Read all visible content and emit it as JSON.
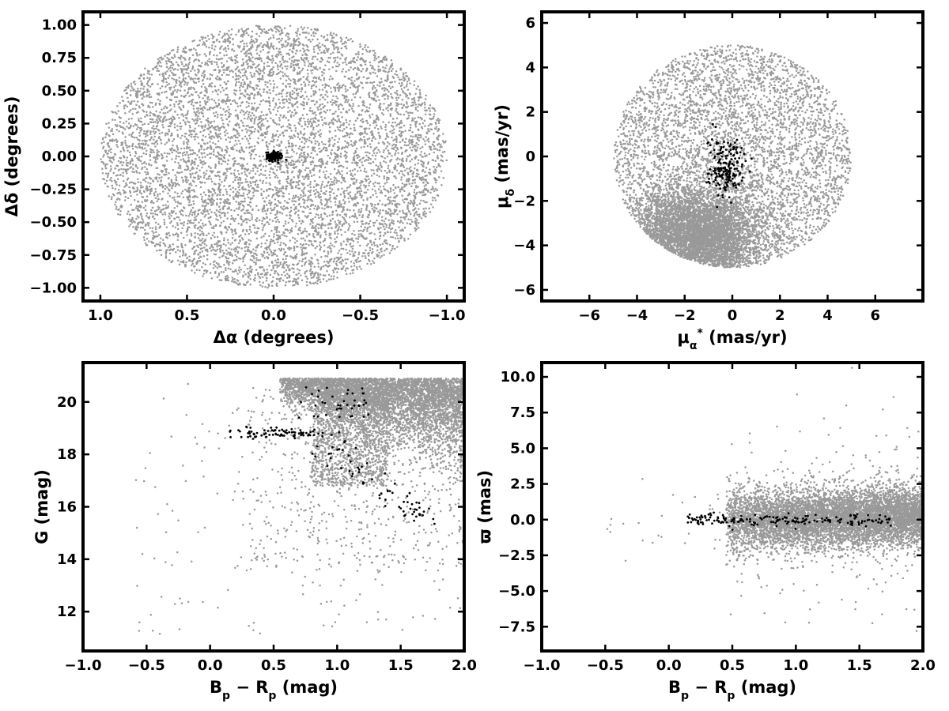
{
  "chart_data": [
    {
      "type": "scatter",
      "xlabel": "Δα (degrees)",
      "ylabel": "Δδ (degrees)",
      "xlim": [
        1.1,
        -1.1
      ],
      "ylim": [
        -1.1,
        1.1
      ],
      "xticks": [
        1.0,
        0.5,
        0.0,
        -0.5,
        -1.0
      ],
      "xtick_labels": [
        "1.0",
        "0.5",
        "0.0",
        "−0.5",
        "−1.0"
      ],
      "yticks": [
        -1.0,
        -0.75,
        -0.5,
        -0.25,
        0.0,
        0.25,
        0.5,
        0.75,
        1.0
      ],
      "ytick_labels": [
        "−1.00",
        "−0.75",
        "−0.50",
        "−0.25",
        "0.00",
        "0.25",
        "0.50",
        "0.75",
        "1.00"
      ],
      "series": [
        {
          "color": "#999999",
          "distribution": "uniform disk",
          "center": [
            0.0,
            0.0
          ],
          "radius": 1.0,
          "count": 7000
        },
        {
          "color": "#000000",
          "distribution": "compact cluster",
          "center": [
            0.0,
            0.0
          ],
          "spread": 0.02,
          "count": 160
        }
      ]
    },
    {
      "type": "scatter",
      "xlabel": "μ_α* (mas/yr)",
      "ylabel": "μ_δ (mas/yr)",
      "xlim": [
        -8,
        8
      ],
      "ylim": [
        -6.5,
        6.5
      ],
      "xticks": [
        -6,
        -4,
        -2,
        0,
        2,
        4,
        6
      ],
      "xtick_labels": [
        "−6",
        "−4",
        "−2",
        "0",
        "2",
        "4",
        "6"
      ],
      "yticks": [
        -6,
        -4,
        -2,
        0,
        2,
        4,
        6
      ],
      "ytick_labels": [
        "−6",
        "−4",
        "−2",
        "0",
        "2",
        "4",
        "6"
      ],
      "series": [
        {
          "color": "#999999",
          "distribution": "disk, denser toward lower-left",
          "center": [
            0.0,
            0.0
          ],
          "radius": 5.0,
          "dense_center": [
            -1.5,
            -3.5
          ],
          "count": 9000
        },
        {
          "color": "#000000",
          "distribution": "cluster",
          "center": [
            -0.3,
            -0.5
          ],
          "spread": [
            0.4,
            0.6
          ],
          "count": 180
        }
      ]
    },
    {
      "type": "scatter",
      "xlabel": "B_p − R_p (mag)",
      "ylabel": "G (mag)",
      "xlim": [
        -1.0,
        2.0
      ],
      "ylim": [
        10.5,
        21.5
      ],
      "xticks": [
        -1.0,
        -0.5,
        0.0,
        0.5,
        1.0,
        1.5,
        2.0
      ],
      "xtick_labels": [
        "−1.0",
        "−0.5",
        "0.0",
        "0.5",
        "1.0",
        "1.5",
        "2.0"
      ],
      "yticks": [
        12,
        14,
        16,
        18,
        20
      ],
      "ytick_labels": [
        "12",
        "14",
        "16",
        "18",
        "20"
      ],
      "series": [
        {
          "color": "#999999",
          "distribution": "field CMD",
          "count": 7000
        },
        {
          "color": "#000000",
          "distribution": "cluster CMD: horizontal branch at G≈18.8 (color 0.15–0.9), red giant branch from (0.85,18.5) to (1.75,15.3), subgiants near G≈19.5–20.5",
          "count": 190
        }
      ]
    },
    {
      "type": "scatter",
      "xlabel": "B_p − R_p (mag)",
      "ylabel": "ϖ (mas)",
      "xlim": [
        -1.0,
        2.0
      ],
      "ylim": [
        -9.2,
        11.0
      ],
      "xticks": [
        -1.0,
        -0.5,
        0.0,
        0.5,
        1.0,
        1.5,
        2.0
      ],
      "xtick_labels": [
        "−1.0",
        "−0.5",
        "0.0",
        "0.5",
        "1.0",
        "1.5",
        "2.0"
      ],
      "yticks": [
        -7.5,
        -5.0,
        -2.5,
        0.0,
        2.5,
        5.0,
        7.5,
        10.0
      ],
      "ytick_labels": [
        "−7.5",
        "−5.0",
        "−2.5",
        "0.0",
        "2.5",
        "5.0",
        "7.5",
        "10.0"
      ],
      "series": [
        {
          "color": "#999999",
          "distribution": "band around ϖ=0, spread grows with color",
          "count": 7000
        },
        {
          "color": "#000000",
          "distribution": "tight band around ϖ≈0",
          "count": 180
        }
      ]
    }
  ]
}
